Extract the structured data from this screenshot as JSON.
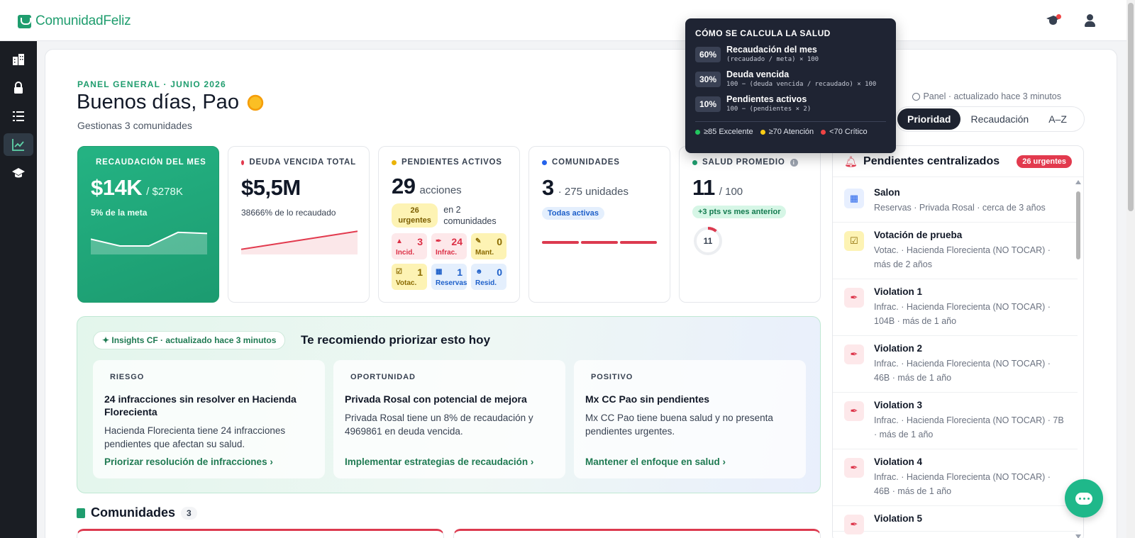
{
  "app": {
    "name": "ComunidadFeliz"
  },
  "header": {
    "eyebrow": "PANEL GENERAL · JUNIO 2026",
    "greeting": "Buenos días, Pao",
    "subtitle": "Gestionas 3 comunidades",
    "meta": "Panel · actualizado hace 3 minutos"
  },
  "sort": {
    "options": [
      "Prioridad",
      "Recaudación",
      "A–Z"
    ],
    "selected": "Prioridad"
  },
  "kpis": {
    "recaudacion": {
      "label": "RECAUDACIÓN DEL MES",
      "value": "$14K",
      "goal": "/ $278K",
      "note": "5% de la meta",
      "trend": [
        0.55,
        0.25,
        0.25,
        0.85,
        0.8
      ]
    },
    "deuda": {
      "label": "DEUDA VENCIDA TOTAL",
      "value": "$5,5M",
      "note": "38666% de lo recaudado",
      "trend": [
        0.1,
        0.3,
        0.5,
        0.7,
        0.9
      ]
    },
    "pendientes": {
      "label": "PENDIENTES ACTIVOS",
      "value": "29",
      "unit": "acciones",
      "urgent_pill": "26 urgentes",
      "urgent_text": "en 2 comunidades",
      "breakdown": [
        {
          "icon": "alert-icon",
          "glyph": "▲",
          "count": "3",
          "label": "Incid.",
          "tone": "red"
        },
        {
          "icon": "gavel-icon",
          "glyph": "✒",
          "count": "24",
          "label": "Infrac.",
          "tone": "red"
        },
        {
          "icon": "wrench-icon",
          "glyph": "✎",
          "count": "0",
          "label": "Mant.",
          "tone": "yel"
        },
        {
          "icon": "vote-icon",
          "glyph": "☑",
          "count": "1",
          "label": "Votac.",
          "tone": "yel"
        },
        {
          "icon": "calendar-icon",
          "glyph": "▦",
          "count": "1",
          "label": "Reservas",
          "tone": "blu"
        },
        {
          "icon": "residents-icon",
          "glyph": "☻",
          "count": "0",
          "label": "Resid.",
          "tone": "blu"
        }
      ]
    },
    "comunidades": {
      "label": "COMUNIDADES",
      "value": "3",
      "unit": "· 275 unidades",
      "pill": "Todas activas"
    },
    "salud": {
      "label": "SALUD PROMEDIO",
      "value": "11",
      "unit": "/ 100",
      "pill": "+3 pts vs mes anterior",
      "ring_value": "11",
      "ring_fraction": 0.11
    }
  },
  "tooltip": {
    "title": "CÓMO SE CALCULA LA SALUD",
    "rows": [
      {
        "pct": "60%",
        "label": "Recaudación del mes",
        "formula": "(recaudado / meta) × 100"
      },
      {
        "pct": "30%",
        "label": "Deuda vencida",
        "formula": "100 − (deuda vencida / recaudado) × 100"
      },
      {
        "pct": "10%",
        "label": "Pendientes activos",
        "formula": "100 − (pendientes × 2)"
      }
    ],
    "legend": [
      {
        "label": "≥85 Excelente",
        "color": "#22c55e"
      },
      {
        "label": "≥70 Atención",
        "color": "#facc15"
      },
      {
        "label": "<70 Crítico",
        "color": "#ef4444"
      }
    ]
  },
  "pendientes_panel": {
    "title": "Pendientes centralizados",
    "badge": "26 urgentes",
    "items": [
      {
        "title": "Salon",
        "sub": "Reservas · Privada Rosal · cerca de 3 años",
        "icon": "calendar-icon",
        "glyph": "▦",
        "bg": "#e7efff",
        "fg": "#2563eb"
      },
      {
        "title": "Votación de prueba",
        "sub": "Votac. · Hacienda Florecienta (NO TOCAR) · más de 2 años",
        "icon": "vote-icon",
        "glyph": "☑",
        "bg": "#fdf3b4",
        "fg": "#8a6a00"
      },
      {
        "title": "Violation 1",
        "sub": "Infrac. · Hacienda Florecienta (NO TOCAR) · 104B · más de 1 año",
        "icon": "gavel-icon",
        "glyph": "✒",
        "bg": "#fde8ea",
        "fg": "#dc2f45"
      },
      {
        "title": "Violation 2",
        "sub": "Infrac. · Hacienda Florecienta (NO TOCAR) · 46B · más de 1 año",
        "icon": "gavel-icon",
        "glyph": "✒",
        "bg": "#fde8ea",
        "fg": "#dc2f45"
      },
      {
        "title": "Violation 3",
        "sub": "Infrac. · Hacienda Florecienta (NO TOCAR) · 7B · más de 1 año",
        "icon": "gavel-icon",
        "glyph": "✒",
        "bg": "#fde8ea",
        "fg": "#dc2f45"
      },
      {
        "title": "Violation 4",
        "sub": "Infrac. · Hacienda Florecienta (NO TOCAR) · 46B · más de 1 año",
        "icon": "gavel-icon",
        "glyph": "✒",
        "bg": "#fde8ea",
        "fg": "#dc2f45"
      },
      {
        "title": "Violation 5",
        "sub": "",
        "icon": "gavel-icon",
        "glyph": "✒",
        "bg": "#fde8ea",
        "fg": "#dc2f45"
      }
    ]
  },
  "insights": {
    "pill": "✦ Insights CF · actualizado hace 3 minutos",
    "title": "Te recomiendo priorizar esto hoy",
    "cards": [
      {
        "tag": "RIESGO",
        "title": "24 infracciones sin resolver en Hacienda Florecienta",
        "text": "Hacienda Florecienta tiene 24 infracciones pendientes que afectan su salud.",
        "link": "Priorizar resolución de infracciones ›"
      },
      {
        "tag": "OPORTUNIDAD",
        "title": "Privada Rosal con potencial de mejora",
        "text": "Privada Rosal tiene un 8% de recaudación y 4969861 en deuda vencida.",
        "link": "Implementar estrategias de recaudación ›"
      },
      {
        "tag": "POSITIVO",
        "title": "Mx CC Pao sin pendientes",
        "text": "Mx CC Pao tiene buena salud y no presenta pendientes urgentes.",
        "link": "Mantener el enfoque en salud ›"
      }
    ]
  },
  "comunidades_section": {
    "title": "Comunidades",
    "count": "3"
  },
  "colors": {
    "brand": "#1f9d6e",
    "critical": "#e23a4e",
    "sidebar": "#1a1d23"
  }
}
